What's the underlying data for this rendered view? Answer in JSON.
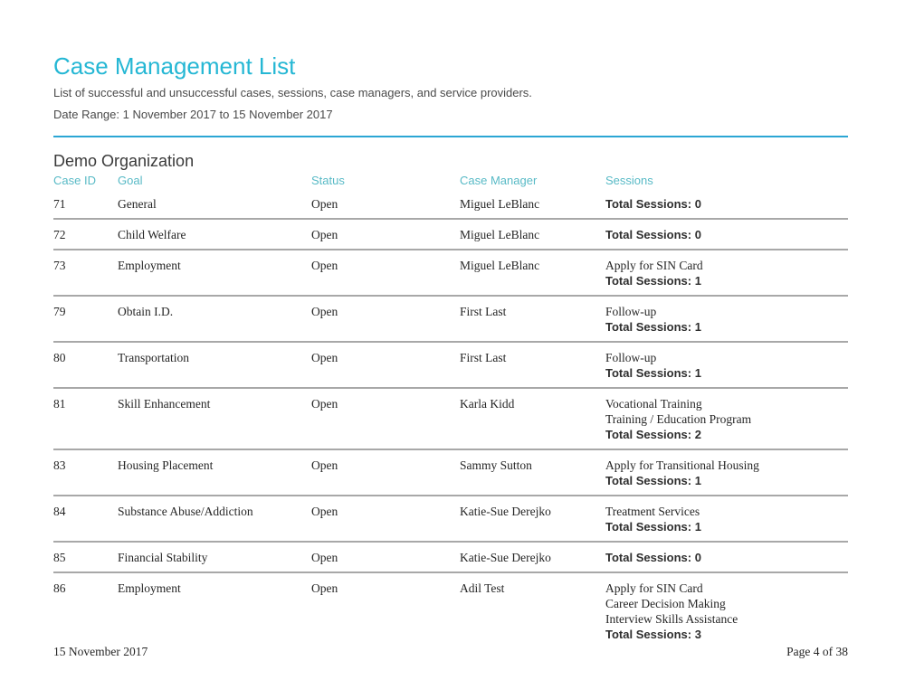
{
  "report": {
    "title": "Case Management List",
    "subtitle": "List of successful and unsuccessful cases, sessions, case managers, and service providers.",
    "date_range": "Date Range: 1 November 2017 to 15 November 2017",
    "organization": "Demo Organization"
  },
  "table": {
    "headers": [
      "Case ID",
      "Goal",
      "Status",
      "Case Manager",
      "Sessions"
    ],
    "rows": [
      {
        "case_id": "71",
        "goal": "General",
        "status": "Open",
        "case_manager": "Miguel LeBlanc",
        "sessions": [],
        "total": "Total Sessions: 0"
      },
      {
        "case_id": "72",
        "goal": "Child Welfare",
        "status": "Open",
        "case_manager": "Miguel LeBlanc",
        "sessions": [],
        "total": "Total Sessions: 0"
      },
      {
        "case_id": "73",
        "goal": "Employment",
        "status": "Open",
        "case_manager": "Miguel LeBlanc",
        "sessions": [
          "Apply for SIN Card"
        ],
        "total": "Total Sessions: 1"
      },
      {
        "case_id": "79",
        "goal": "Obtain I.D.",
        "status": "Open",
        "case_manager": "First Last",
        "sessions": [
          "Follow-up"
        ],
        "total": "Total Sessions: 1"
      },
      {
        "case_id": "80",
        "goal": "Transportation",
        "status": "Open",
        "case_manager": "First Last",
        "sessions": [
          "Follow-up"
        ],
        "total": "Total Sessions: 1"
      },
      {
        "case_id": "81",
        "goal": "Skill Enhancement",
        "status": "Open",
        "case_manager": "Karla Kidd",
        "sessions": [
          "Vocational Training",
          "Training / Education Program"
        ],
        "total": "Total Sessions: 2"
      },
      {
        "case_id": "83",
        "goal": "Housing Placement",
        "status": "Open",
        "case_manager": "Sammy Sutton",
        "sessions": [
          "Apply for Transitional Housing"
        ],
        "total": "Total Sessions: 1"
      },
      {
        "case_id": "84",
        "goal": "Substance Abuse/Addiction",
        "status": "Open",
        "case_manager": "Katie-Sue Derejko",
        "sessions": [
          "Treatment Services"
        ],
        "total": "Total Sessions: 1"
      },
      {
        "case_id": "85",
        "goal": "Financial Stability",
        "status": "Open",
        "case_manager": "Katie-Sue Derejko",
        "sessions": [],
        "total": "Total Sessions: 0"
      },
      {
        "case_id": "86",
        "goal": "Employment",
        "status": "Open",
        "case_manager": "Adil Test",
        "sessions": [
          "Apply for SIN Card",
          "Career Decision Making",
          "Interview Skills Assistance"
        ],
        "total": "Total Sessions: 3"
      }
    ]
  },
  "footer": {
    "date": "15 November 2017",
    "page": "Page 4 of 38"
  },
  "colors": {
    "accent_title": "#25b7d4",
    "header_label": "#58bac6",
    "divider": "#2ba6d4",
    "separator": "#a8a8a8",
    "text_sans": "#4a4a4a",
    "text_org": "#3a3a3a",
    "text_serif": "#262626",
    "text_total": "#2e2e2e"
  }
}
